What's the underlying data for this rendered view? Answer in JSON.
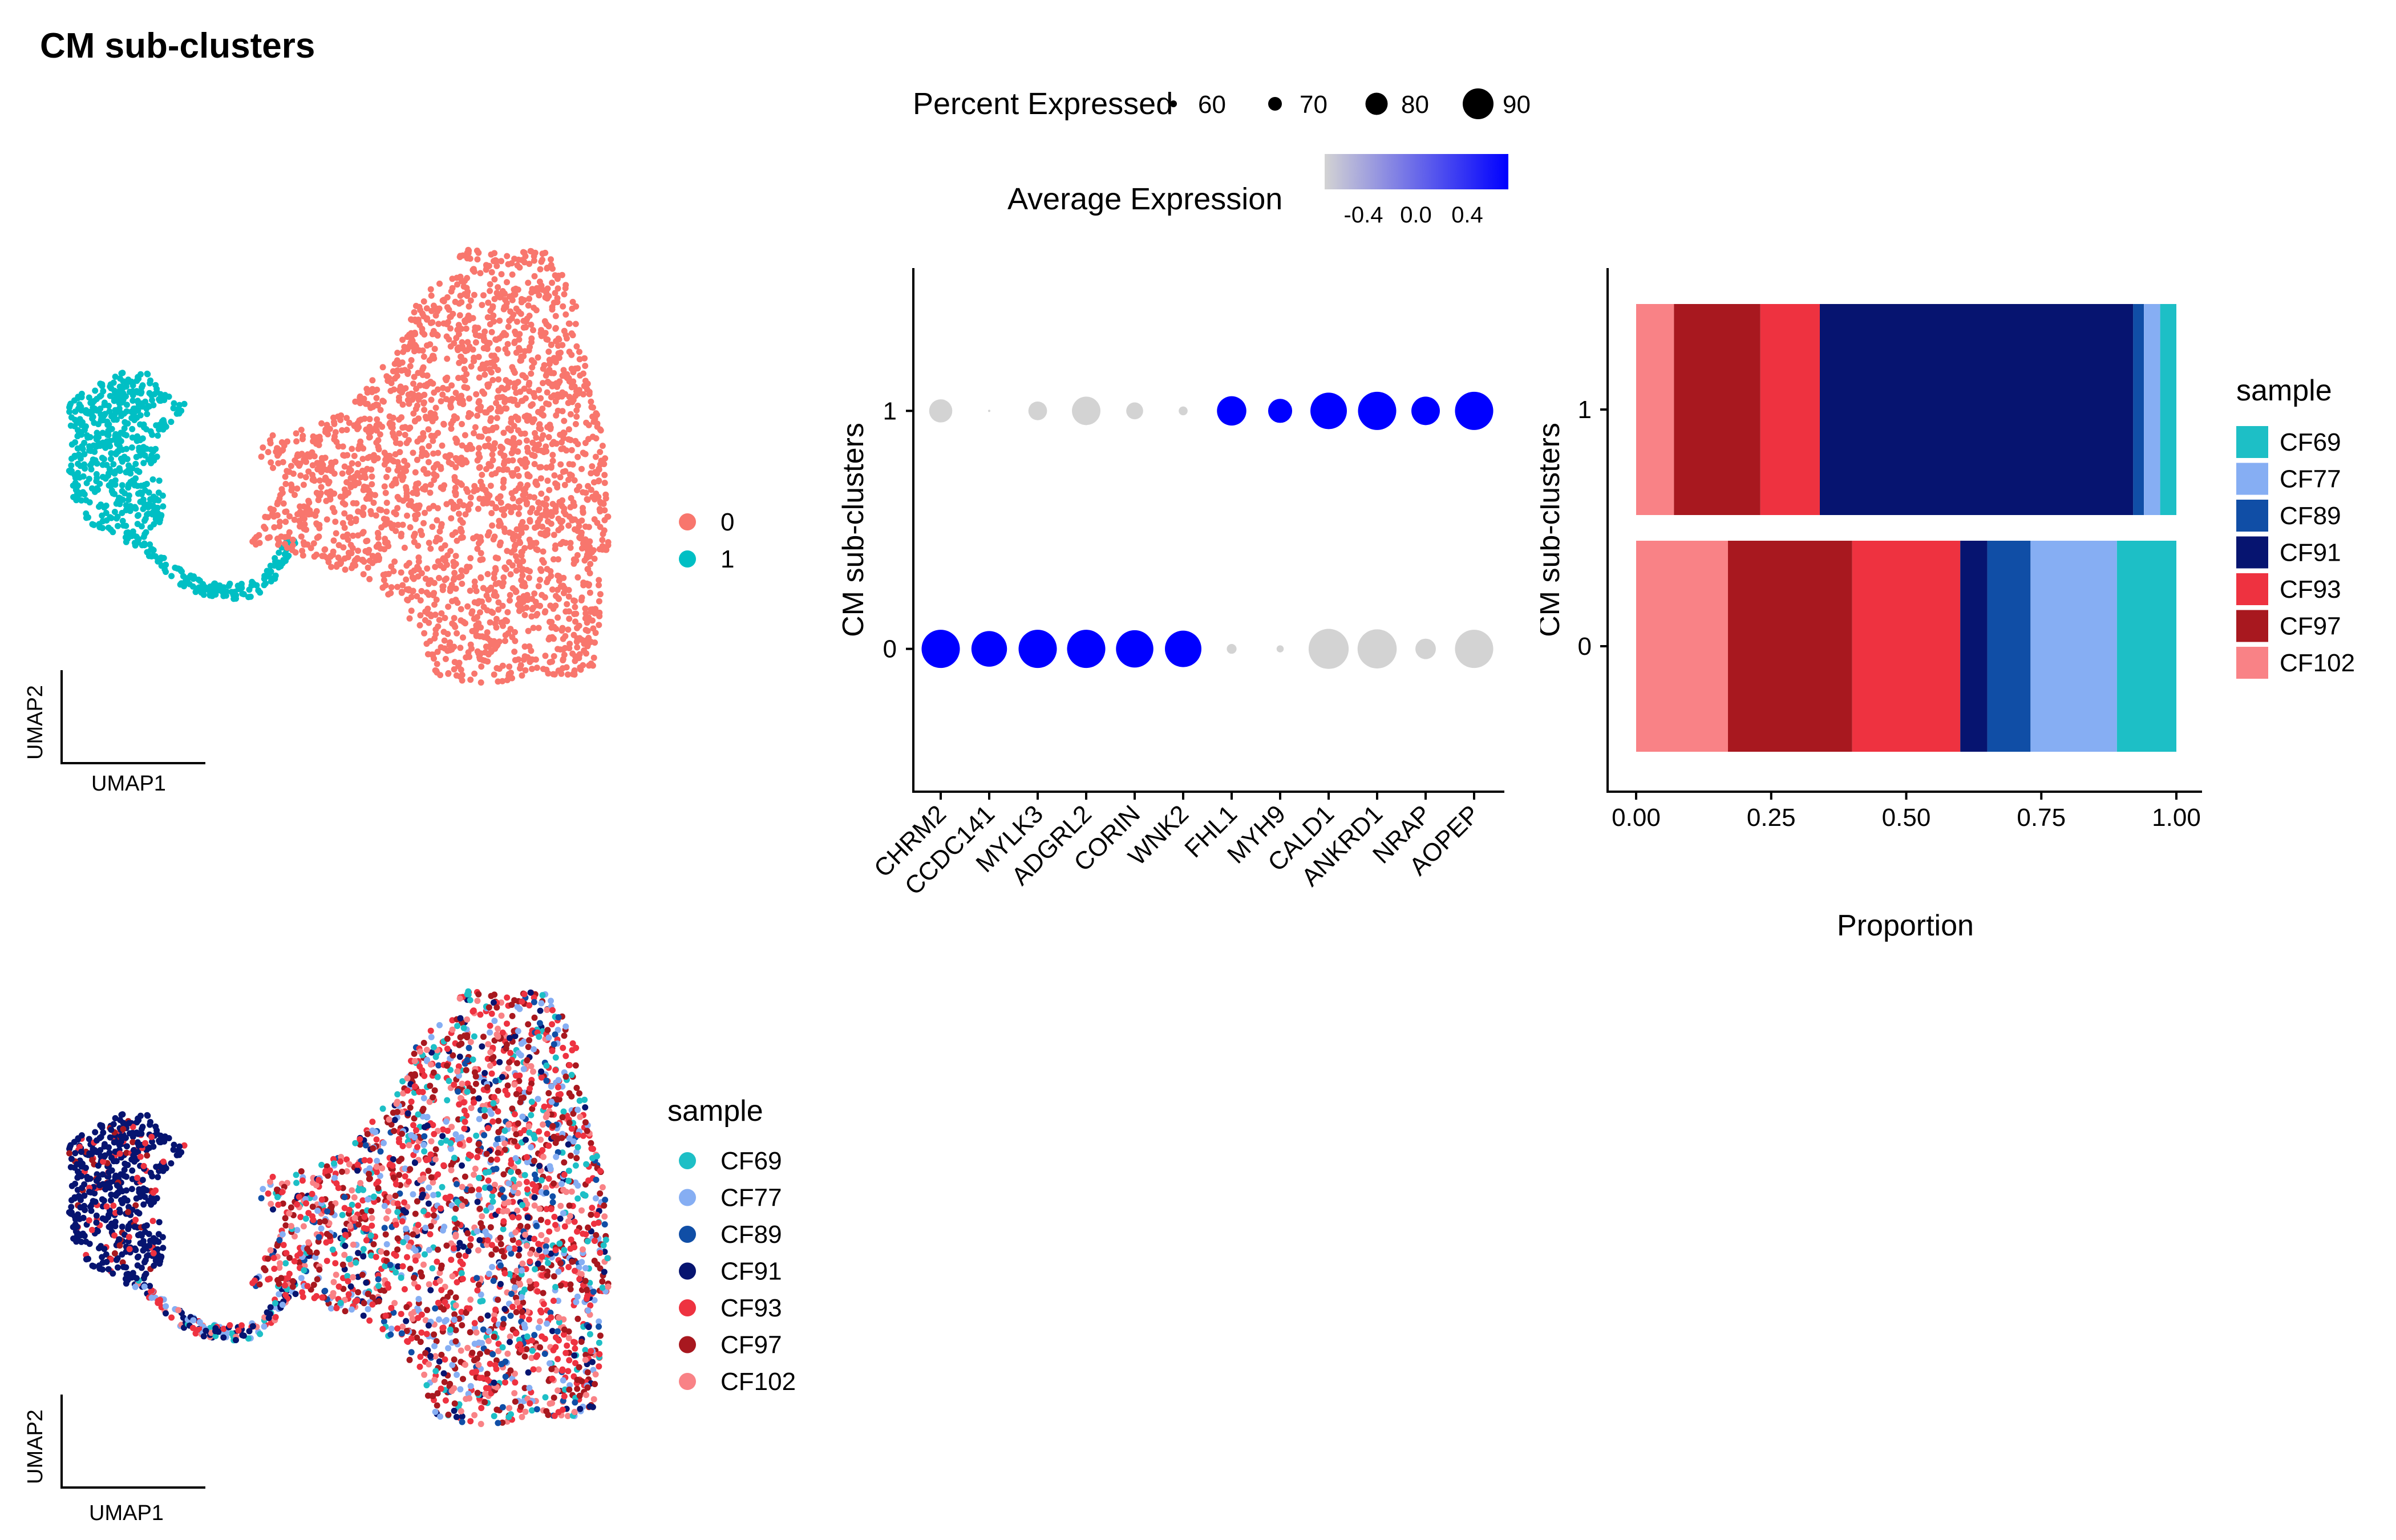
{
  "page": {
    "title": "CM sub-clusters"
  },
  "colors": {
    "cluster": {
      "0": "#F8766D",
      "1": "#00BFC4"
    },
    "sample": {
      "CF69": "#1DBFC6",
      "CF77": "#86AEF3",
      "CF89": "#104EA6",
      "CF91": "#061470",
      "CF93": "#EE3240",
      "CF97": "#A8181F",
      "CF102": "#F98286"
    },
    "exp_low": "#D3D3D3",
    "exp_high": "#0000FF"
  },
  "chart_data": [
    {
      "id": "umap-clusters",
      "type": "scatter",
      "title": "",
      "xlabel": "UMAP1",
      "ylabel": "UMAP2",
      "color_by": "cluster",
      "legend": {
        "title": "",
        "placement": "right",
        "items": [
          "0",
          "1"
        ]
      },
      "note": "embedding shape: cluster 1 small left lobe + lower bridge; cluster 0 large right mass"
    },
    {
      "id": "dotplot",
      "type": "scatter",
      "title": "",
      "xlabel": "",
      "ylabel": "CM sub-clusters",
      "genes": [
        "CHRM2",
        "CCDC141",
        "MYLK3",
        "ADGRL2",
        "CORIN",
        "WNK2",
        "FHL1",
        "MYH9",
        "CALD1",
        "ANKRD1",
        "NRAP",
        "AOPEP"
      ],
      "clusters": [
        "0",
        "1"
      ],
      "ylim": [
        -0.6,
        1.6
      ],
      "yticks": [
        "0",
        "1"
      ],
      "series": [
        {
          "cluster": "0",
          "pct_expressed": [
            90,
            87,
            90,
            90,
            89,
            88,
            58,
            55,
            92,
            91,
            70,
            90
          ],
          "avg_expression": [
            0.7,
            0.7,
            0.7,
            0.7,
            0.7,
            0.7,
            -0.7,
            -0.7,
            -0.7,
            -0.7,
            -0.7,
            -0.7
          ]
        },
        {
          "cluster": "1",
          "pct_expressed": [
            73,
            48,
            68,
            79,
            66,
            57,
            80,
            74,
            88,
            90,
            79,
            90
          ],
          "avg_expression": [
            -0.7,
            -0.7,
            -0.7,
            -0.7,
            -0.7,
            -0.7,
            0.7,
            0.7,
            0.7,
            0.7,
            0.7,
            0.7
          ]
        }
      ],
      "size_legend": {
        "title": "Percent Expressed",
        "values": [
          60,
          70,
          80,
          90
        ],
        "placement": "top"
      },
      "color_legend": {
        "title": "Average Expression",
        "ticks": [
          "-0.4",
          "0.0",
          "0.4"
        ],
        "range": [
          -0.7,
          0.7
        ],
        "placement": "top"
      }
    },
    {
      "id": "proportion-bar",
      "type": "bar",
      "orientation": "horizontal",
      "stacked": true,
      "title": "",
      "xlabel": "Proportion",
      "ylabel": "CM sub-clusters",
      "categories": [
        "0",
        "1"
      ],
      "xlim": [
        0,
        1
      ],
      "xticks": [
        "0.00",
        "0.25",
        "0.50",
        "0.75",
        "1.00"
      ],
      "stack_order_left_to_right": [
        "CF102",
        "CF97",
        "CF93",
        "CF91",
        "CF89",
        "CF77",
        "CF69"
      ],
      "series": [
        {
          "name": "CF102",
          "values": [
            0.17,
            0.07
          ]
        },
        {
          "name": "CF97",
          "values": [
            0.23,
            0.16
          ]
        },
        {
          "name": "CF93",
          "values": [
            0.2,
            0.11
          ]
        },
        {
          "name": "CF91",
          "values": [
            0.05,
            0.58
          ]
        },
        {
          "name": "CF89",
          "values": [
            0.08,
            0.02
          ]
        },
        {
          "name": "CF77",
          "values": [
            0.16,
            0.03
          ]
        },
        {
          "name": "CF69",
          "values": [
            0.11,
            0.03
          ]
        }
      ],
      "legend": {
        "title": "sample",
        "placement": "right",
        "items": [
          "CF69",
          "CF77",
          "CF89",
          "CF91",
          "CF93",
          "CF97",
          "CF102"
        ]
      }
    },
    {
      "id": "umap-samples",
      "type": "scatter",
      "title": "",
      "xlabel": "UMAP1",
      "ylabel": "UMAP2",
      "color_by": "sample",
      "legend": {
        "title": "sample",
        "placement": "right",
        "items": [
          "CF69",
          "CF77",
          "CF89",
          "CF91",
          "CF93",
          "CF97",
          "CF102"
        ]
      }
    }
  ]
}
